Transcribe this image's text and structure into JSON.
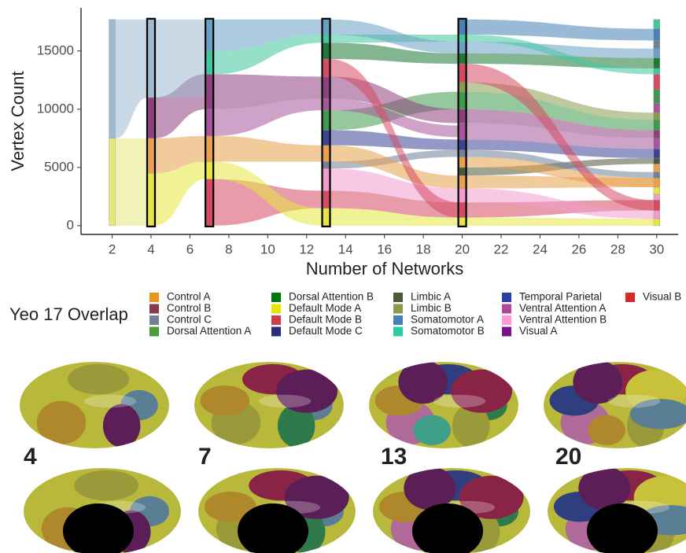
{
  "chart_data": {
    "type": "alluvial",
    "xlabel": "Number of Networks",
    "ylabel": "Vertex Count",
    "xlim": [
      0.4,
      31.1
    ],
    "ylim": [
      -750,
      18700
    ],
    "xticks": [
      2,
      4,
      6,
      8,
      10,
      12,
      14,
      16,
      18,
      20,
      22,
      24,
      26,
      28,
      30
    ],
    "yticks": [
      0,
      5000,
      10000,
      15000
    ],
    "columns": [
      {
        "x": 2,
        "outlined": false,
        "segments": [
          {
            "color": "#e6e87c",
            "value": 7500
          },
          {
            "color": "#9dbad0",
            "value": 10200
          }
        ]
      },
      {
        "x": 4,
        "outlined": true,
        "segments": [
          {
            "color": "#e6e640",
            "value": 4500
          },
          {
            "color": "#e8a04c",
            "value": 3000
          },
          {
            "color": "#8e3f7e",
            "value": 3500
          },
          {
            "color": "#9dbad0",
            "value": 6700
          }
        ]
      },
      {
        "x": 7,
        "outlined": true,
        "segments": [
          {
            "color": "#d64a62",
            "value": 4000
          },
          {
            "color": "#e6e640",
            "value": 1500
          },
          {
            "color": "#e8a04c",
            "value": 2200
          },
          {
            "color": "#a8559e",
            "value": 2300
          },
          {
            "color": "#8e3f7e",
            "value": 3000
          },
          {
            "color": "#3fc79f",
            "value": 2000
          },
          {
            "color": "#6aa0c4",
            "value": 2700
          }
        ]
      },
      {
        "x": 13,
        "outlined": true,
        "segments": [
          {
            "color": "#e6e640",
            "value": 1500
          },
          {
            "color": "#d64a62",
            "value": 1500
          },
          {
            "color": "#f29ccd",
            "value": 1900
          },
          {
            "color": "#6f8299",
            "value": 600
          },
          {
            "color": "#e8a04c",
            "value": 1400
          },
          {
            "color": "#3b4494",
            "value": 1300
          },
          {
            "color": "#3e9a4b",
            "value": 1700
          },
          {
            "color": "#a8559e",
            "value": 1000
          },
          {
            "color": "#8e3f7e",
            "value": 1900
          },
          {
            "color": "#d64a62",
            "value": 1500
          },
          {
            "color": "#1d7a35",
            "value": 1400
          },
          {
            "color": "#3fc79f",
            "value": 700
          },
          {
            "color": "#6aa0c4",
            "value": 1300
          }
        ]
      },
      {
        "x": 20,
        "outlined": true,
        "segments": [
          {
            "color": "#e6e640",
            "value": 700
          },
          {
            "color": "#d64a62",
            "value": 1300
          },
          {
            "color": "#f29ccd",
            "value": 1200
          },
          {
            "color": "#e8a04c",
            "value": 1100
          },
          {
            "color": "#4c5a3a",
            "value": 700
          },
          {
            "color": "#e8a04c",
            "value": 900
          },
          {
            "color": "#6f8299",
            "value": 600
          },
          {
            "color": "#3b4494",
            "value": 900
          },
          {
            "color": "#a8559e",
            "value": 1400
          },
          {
            "color": "#8e3f7e",
            "value": 1200
          },
          {
            "color": "#3e9a4b",
            "value": 1500
          },
          {
            "color": "#8c9a4e",
            "value": 800
          },
          {
            "color": "#d64a62",
            "value": 1600
          },
          {
            "color": "#1d7a35",
            "value": 900
          },
          {
            "color": "#6aa0c4",
            "value": 1000
          },
          {
            "color": "#3fc79f",
            "value": 600
          },
          {
            "color": "#4682b4",
            "value": 1300
          }
        ]
      },
      {
        "x": 30,
        "outlined": false,
        "segments": [
          {
            "color": "#e6e640",
            "value": 600
          },
          {
            "color": "#f29ccd",
            "value": 700
          },
          {
            "color": "#d64a62",
            "value": 900
          },
          {
            "color": "#f29ccd",
            "value": 500
          },
          {
            "color": "#e6e640",
            "value": 600
          },
          {
            "color": "#e8a04c",
            "value": 800
          },
          {
            "color": "#6f8299",
            "value": 500
          },
          {
            "color": "#e8a04c",
            "value": 700
          },
          {
            "color": "#4c5a3a",
            "value": 500
          },
          {
            "color": "#3b4494",
            "value": 800
          },
          {
            "color": "#a8559e",
            "value": 900
          },
          {
            "color": "#8e3f7e",
            "value": 700
          },
          {
            "color": "#3e9a4b",
            "value": 900
          },
          {
            "color": "#8c9a4e",
            "value": 600
          },
          {
            "color": "#a8559e",
            "value": 800
          },
          {
            "color": "#3e9a4b",
            "value": 1200
          },
          {
            "color": "#d64a62",
            "value": 1300
          },
          {
            "color": "#3fc79f",
            "value": 500
          },
          {
            "color": "#1d7a35",
            "value": 900
          },
          {
            "color": "#6aa0c4",
            "value": 800
          },
          {
            "color": "#6f8299",
            "value": 700
          },
          {
            "color": "#4682b4",
            "value": 1000
          },
          {
            "color": "#3fc79f",
            "value": 600
          },
          {
            "color": "#3fc79f",
            "value": 200
          }
        ]
      }
    ],
    "legend": {
      "title": "Yeo 17 Overlap",
      "entries": [
        {
          "name": "Control A",
          "color": "#e69422"
        },
        {
          "name": "Control B",
          "color": "#873a4b"
        },
        {
          "name": "Control C",
          "color": "#6f8299"
        },
        {
          "name": "Dorsal Attention A",
          "color": "#4a9b3c"
        },
        {
          "name": "Dorsal Attention B",
          "color": "#00760e"
        },
        {
          "name": "Default Mode A",
          "color": "#e6e600"
        },
        {
          "name": "Default Mode B",
          "color": "#cd3e4e"
        },
        {
          "name": "Default Mode C",
          "color": "#2a2e78"
        },
        {
          "name": "Limbic A",
          "color": "#4c5a3a"
        },
        {
          "name": "Limbic B",
          "color": "#8c9a4e"
        },
        {
          "name": "Somatomotor A",
          "color": "#4682b4"
        },
        {
          "name": "Somatomotor B",
          "color": "#2acca4"
        },
        {
          "name": "Temporal Parietal",
          "color": "#2e3e9e"
        },
        {
          "name": "Ventral Attention A",
          "color": "#b0479a"
        },
        {
          "name": "Ventral Attention B",
          "color": "#ff98d5"
        },
        {
          "name": "Visual A",
          "color": "#781286"
        },
        {
          "name": "Visual B",
          "color": "#d42a2a"
        }
      ]
    }
  },
  "panels": [
    {
      "label": "4"
    },
    {
      "label": "7"
    },
    {
      "label": "13"
    },
    {
      "label": "20"
    }
  ]
}
